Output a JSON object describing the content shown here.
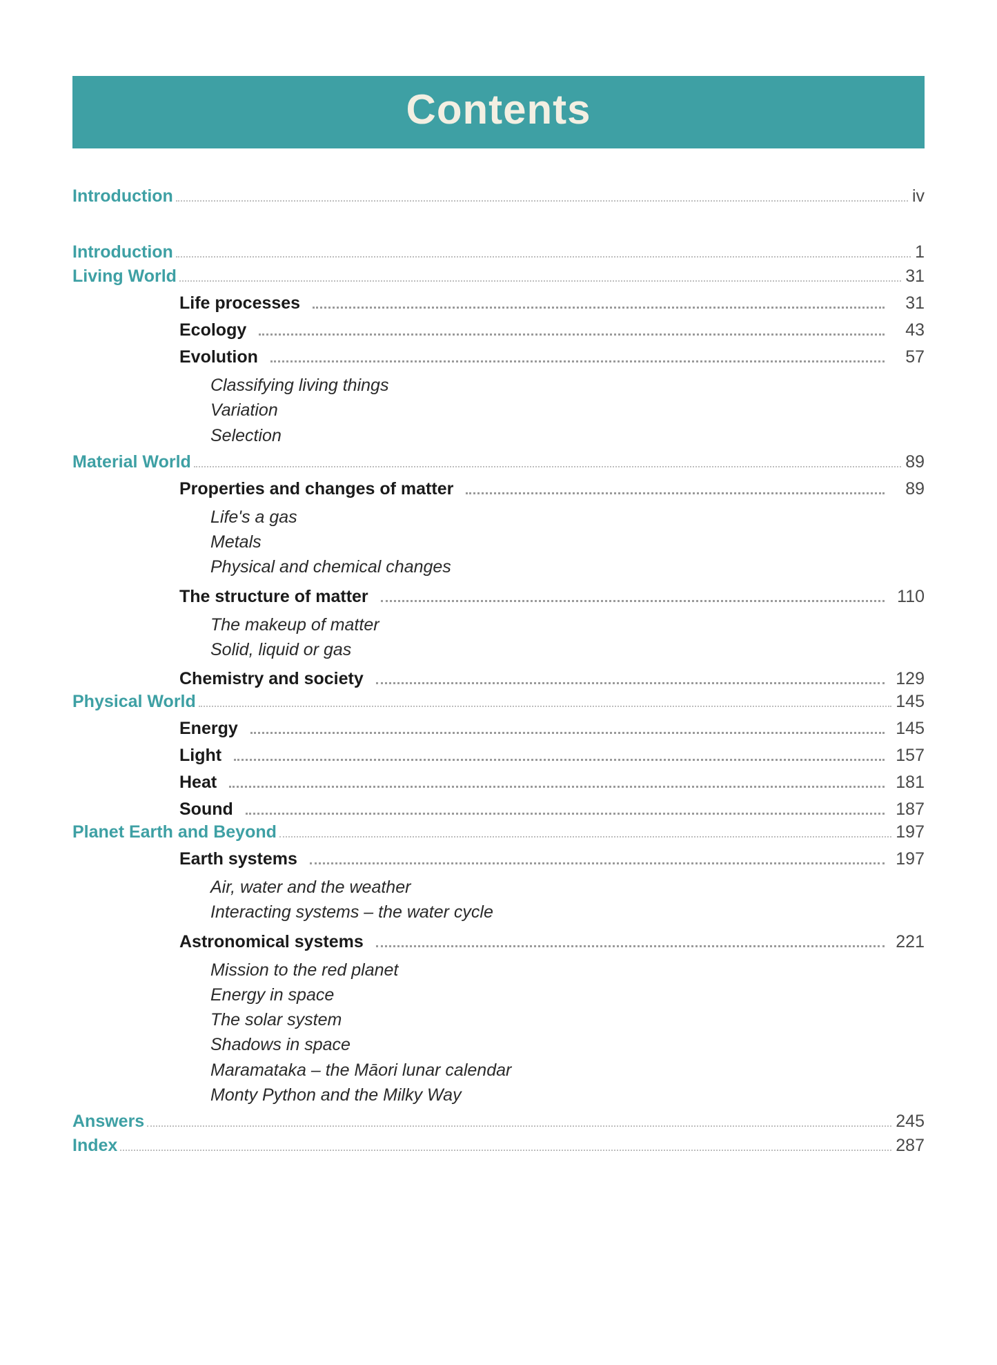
{
  "colors": {
    "accent": "#3ea0a4",
    "title_bar_bg": "#3ea0a4",
    "title_bar_fg": "#f3efe2"
  },
  "title": "Contents",
  "preface": {
    "label": "Introduction",
    "page": "iv"
  },
  "sections": [
    {
      "label": "Introduction",
      "page": "1",
      "chapters": []
    },
    {
      "label": "Living World",
      "page": "31",
      "chapters": [
        {
          "label": "Life processes",
          "page": "31",
          "topics": []
        },
        {
          "label": "Ecology",
          "page": "43",
          "topics": []
        },
        {
          "label": "Evolution",
          "page": "57",
          "topics": [
            "Classifying living things",
            "Variation",
            "Selection"
          ]
        }
      ]
    },
    {
      "label": "Material World",
      "page": "89",
      "chapters": [
        {
          "label": "Properties and changes of matter",
          "page": "89",
          "topics": [
            "Life's a gas",
            "Metals",
            "Physical and chemical changes"
          ]
        },
        {
          "label": "The structure of matter",
          "page": "110",
          "topics": [
            "The makeup of matter",
            "Solid, liquid or gas"
          ]
        },
        {
          "label": "Chemistry and society",
          "page": "129",
          "topics": []
        }
      ]
    },
    {
      "label": "Physical World",
      "page": "145",
      "chapters": [
        {
          "label": "Energy",
          "page": "145",
          "topics": []
        },
        {
          "label": "Light",
          "page": "157",
          "topics": []
        },
        {
          "label": "Heat",
          "page": "181",
          "topics": []
        },
        {
          "label": "Sound",
          "page": "187",
          "topics": []
        }
      ]
    },
    {
      "label": "Planet Earth and Beyond",
      "page": "197",
      "chapters": [
        {
          "label": "Earth systems",
          "page": "197",
          "topics": [
            "Air, water and the weather",
            "Interacting systems – the water cycle"
          ]
        },
        {
          "label": "Astronomical systems",
          "page": "221",
          "topics": [
            "Mission to the red planet",
            "Energy in space",
            "The solar system",
            "Shadows in space",
            "Maramataka – the Māori lunar calendar",
            "Monty Python and the Milky Way"
          ]
        }
      ]
    },
    {
      "label": "Answers",
      "page": "245",
      "chapters": []
    },
    {
      "label": "Index",
      "page": "287",
      "chapters": []
    }
  ]
}
